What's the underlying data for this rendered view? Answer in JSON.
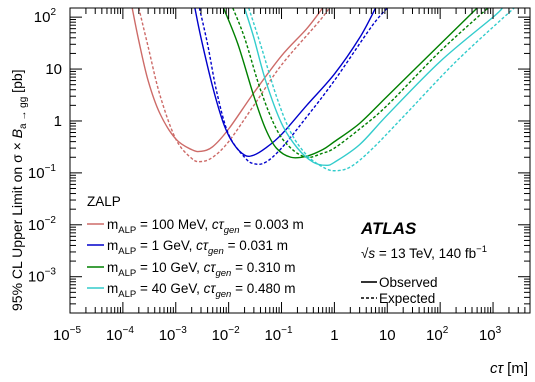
{
  "chart_data": {
    "type": "line",
    "x_scale": "log",
    "y_scale": "log",
    "xlim": [
      1e-05,
      5000
    ],
    "ylim": [
      0.0002,
      150
    ],
    "xlabel": {
      "symbol": "cτ",
      "unit": "[m]"
    },
    "ylabel": {
      "prefix": "95% CL Upper Limit on σ × ",
      "symbol": "B",
      "subscript": "a → gg",
      "unit": " [pb]"
    },
    "x_ticks": [
      {
        "value": 1e-05,
        "base": "10",
        "exp": "−5"
      },
      {
        "value": 0.0001,
        "base": "10",
        "exp": "−4"
      },
      {
        "value": 0.001,
        "base": "10",
        "exp": "−3"
      },
      {
        "value": 0.01,
        "base": "10",
        "exp": "−2"
      },
      {
        "value": 0.1,
        "base": "10",
        "exp": "−1"
      },
      {
        "value": 1,
        "base": "1",
        "exp": ""
      },
      {
        "value": 10,
        "base": "10",
        "exp": ""
      },
      {
        "value": 100,
        "base": "10",
        "exp": "2"
      },
      {
        "value": 1000,
        "base": "10",
        "exp": "3"
      }
    ],
    "y_ticks": [
      {
        "value": 0.001,
        "base": "10",
        "exp": "−3"
      },
      {
        "value": 0.01,
        "base": "10",
        "exp": "−2"
      },
      {
        "value": 0.1,
        "base": "10",
        "exp": "−1"
      },
      {
        "value": 1,
        "base": "1",
        "exp": ""
      },
      {
        "value": 10,
        "base": "10",
        "exp": ""
      },
      {
        "value": 100,
        "base": "10",
        "exp": "2"
      }
    ],
    "legend": {
      "title": "ZALP",
      "placement": "lower-left",
      "entries": [
        {
          "mass_sym": "m",
          "mass_sub": "ALP",
          "text1": " = 100 MeV, ",
          "ct_sym": "cτ",
          "ct_sub": "gen",
          "text2": " = 0.003 m"
        },
        {
          "mass_sym": "m",
          "mass_sub": "ALP",
          "text1": " = 1 GeV, ",
          "ct_sym": "cτ",
          "ct_sub": "gen",
          "text2": " = 0.031 m"
        },
        {
          "mass_sym": "m",
          "mass_sub": "ALP",
          "text1": " = 10 GeV, ",
          "ct_sym": "cτ",
          "ct_sub": "gen",
          "text2": " = 0.310 m"
        },
        {
          "mass_sym": "m",
          "mass_sub": "ALP",
          "text1": " = 40 GeV, ",
          "ct_sym": "cτ",
          "ct_sub": "gen",
          "text2": " = 0.480 m"
        }
      ],
      "style_entries": [
        {
          "label": "Observed",
          "dashed": false
        },
        {
          "label": "Expected",
          "dashed": true
        }
      ]
    },
    "atlas_label": "ATLAS",
    "energy_label": {
      "root": "√",
      "s_sym": "s",
      "text": " = 13 TeV, 140 fb",
      "sup": "−1"
    },
    "series": [
      {
        "name": "m_ALP = 100 MeV, cτ_gen = 0.003 m",
        "color": "#cd6b68",
        "observed": [
          [
            0.00015,
            150
          ],
          [
            0.0002,
            35
          ],
          [
            0.0003,
            6
          ],
          [
            0.0005,
            1.4
          ],
          [
            0.001,
            0.45
          ],
          [
            0.002,
            0.28
          ],
          [
            0.003,
            0.26
          ],
          [
            0.005,
            0.32
          ],
          [
            0.01,
            0.7
          ],
          [
            0.03,
            3.5
          ],
          [
            0.1,
            18
          ],
          [
            0.3,
            60
          ],
          [
            0.6,
            150
          ]
        ],
        "expected": [
          [
            0.0002,
            150
          ],
          [
            0.0003,
            27
          ],
          [
            0.0005,
            3.2
          ],
          [
            0.001,
            0.45
          ],
          [
            0.002,
            0.19
          ],
          [
            0.003,
            0.165
          ],
          [
            0.005,
            0.2
          ],
          [
            0.01,
            0.4
          ],
          [
            0.03,
            2
          ],
          [
            0.1,
            12
          ],
          [
            0.5,
            80
          ],
          [
            0.8,
            150
          ]
        ]
      },
      {
        "name": "m_ALP = 1 GeV, cτ_gen = 0.031 m",
        "color": "#0000cc",
        "observed": [
          [
            0.0023,
            150
          ],
          [
            0.003,
            40
          ],
          [
            0.005,
            4.5
          ],
          [
            0.008,
            0.9
          ],
          [
            0.012,
            0.38
          ],
          [
            0.02,
            0.22
          ],
          [
            0.03,
            0.22
          ],
          [
            0.05,
            0.3
          ],
          [
            0.1,
            0.55
          ],
          [
            0.3,
            2
          ],
          [
            1,
            8
          ],
          [
            3,
            40
          ],
          [
            6,
            150
          ]
        ],
        "expected": [
          [
            0.0028,
            150
          ],
          [
            0.004,
            30
          ],
          [
            0.006,
            3.5
          ],
          [
            0.01,
            0.55
          ],
          [
            0.02,
            0.2
          ],
          [
            0.03,
            0.15
          ],
          [
            0.05,
            0.16
          ],
          [
            0.1,
            0.3
          ],
          [
            0.3,
            1.2
          ],
          [
            1,
            6
          ],
          [
            5,
            65
          ],
          [
            10,
            150
          ]
        ]
      },
      {
        "name": "m_ALP = 10 GeV, cτ_gen = 0.310 m",
        "color": "#008000",
        "observed": [
          [
            0.008,
            150
          ],
          [
            0.015,
            30
          ],
          [
            0.03,
            3
          ],
          [
            0.05,
            0.7
          ],
          [
            0.08,
            0.3
          ],
          [
            0.15,
            0.2
          ],
          [
            0.3,
            0.21
          ],
          [
            0.6,
            0.28
          ],
          [
            1,
            0.4
          ],
          [
            3,
            0.9
          ],
          [
            10,
            3
          ],
          [
            100,
            30
          ],
          [
            500,
            150
          ]
        ],
        "expected": [
          [
            0.012,
            150
          ],
          [
            0.02,
            40
          ],
          [
            0.04,
            4
          ],
          [
            0.08,
            0.7
          ],
          [
            0.15,
            0.3
          ],
          [
            0.3,
            0.2
          ],
          [
            0.6,
            0.24
          ],
          [
            1,
            0.3
          ],
          [
            3,
            0.7
          ],
          [
            10,
            2
          ],
          [
            100,
            22
          ],
          [
            800,
            150
          ]
        ]
      },
      {
        "name": "m_ALP = 40 GeV, cτ_gen = 0.480 m",
        "color": "#33cccc",
        "observed": [
          [
            0.02,
            150
          ],
          [
            0.03,
            40
          ],
          [
            0.05,
            6
          ],
          [
            0.1,
            0.9
          ],
          [
            0.2,
            0.3
          ],
          [
            0.4,
            0.16
          ],
          [
            0.7,
            0.14
          ],
          [
            1,
            0.16
          ],
          [
            3,
            0.35
          ],
          [
            10,
            1.3
          ],
          [
            100,
            14
          ],
          [
            1000,
            100
          ],
          [
            1500,
            150
          ]
        ],
        "expected": [
          [
            0.024,
            150
          ],
          [
            0.04,
            30
          ],
          [
            0.08,
            3
          ],
          [
            0.15,
            0.6
          ],
          [
            0.3,
            0.22
          ],
          [
            0.6,
            0.13
          ],
          [
            1,
            0.11
          ],
          [
            2,
            0.13
          ],
          [
            5,
            0.28
          ],
          [
            20,
            1.2
          ],
          [
            200,
            14
          ],
          [
            2500,
            150
          ]
        ]
      }
    ]
  }
}
